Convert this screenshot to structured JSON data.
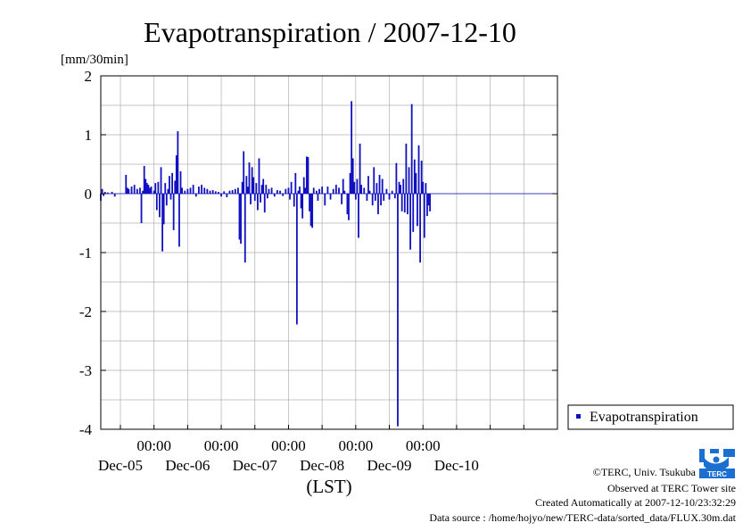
{
  "chart_data": {
    "type": "bar",
    "title": "Evapotranspiration / 2007-12-10",
    "ylabel": "[mm/30min]",
    "xlabel": "(LST)",
    "ylim": [
      -4,
      2
    ],
    "yticks": [
      "2",
      "1",
      "0",
      "-1",
      "-2",
      "-3",
      "-4"
    ],
    "xlim": [
      "2007-12-04 05:00",
      "2007-12-10 24:00"
    ],
    "xtick_times": [
      "00:00",
      "00:00",
      "00:00",
      "00:00",
      "00:00"
    ],
    "xtick_dates": [
      "Dec-05",
      "Dec-06",
      "Dec-07",
      "Dec-08",
      "Dec-09",
      "Dec-10"
    ],
    "grid": true,
    "legend_position": "bottom-right",
    "series": [
      {
        "name": "Evapotranspiration",
        "color": "#1010c0",
        "points": [
          {
            "t": "2007-12-04 05:00",
            "v": -0.12
          },
          {
            "t": "2007-12-04 05:30",
            "v": 0.08
          },
          {
            "t": "2007-12-04 06:00",
            "v": -0.04
          },
          {
            "t": "2007-12-04 06:30",
            "v": 0.03
          },
          {
            "t": "2007-12-04 07:30",
            "v": 0.02
          },
          {
            "t": "2007-12-04 09:00",
            "v": 0.03
          },
          {
            "t": "2007-12-04 10:00",
            "v": -0.05
          },
          {
            "t": "2007-12-04 14:00",
            "v": 0.32
          },
          {
            "t": "2007-12-04 14:30",
            "v": 0.1
          },
          {
            "t": "2007-12-04 15:00",
            "v": 0.08
          },
          {
            "t": "2007-12-04 16:00",
            "v": 0.12
          },
          {
            "t": "2007-12-04 17:00",
            "v": 0.15
          },
          {
            "t": "2007-12-04 18:00",
            "v": 0.08
          },
          {
            "t": "2007-12-04 19:00",
            "v": 0.1
          },
          {
            "t": "2007-12-04 19:30",
            "v": -0.5
          },
          {
            "t": "2007-12-04 20:00",
            "v": 0.05
          },
          {
            "t": "2007-12-04 20:30",
            "v": 0.47
          },
          {
            "t": "2007-12-04 21:00",
            "v": 0.25
          },
          {
            "t": "2007-12-04 21:30",
            "v": 0.18
          },
          {
            "t": "2007-12-04 22:00",
            "v": 0.15
          },
          {
            "t": "2007-12-04 22:30",
            "v": 0.1
          },
          {
            "t": "2007-12-04 23:00",
            "v": 0.12
          },
          {
            "t": "2007-12-05 00:00",
            "v": 0.05
          },
          {
            "t": "2007-12-05 00:30",
            "v": 0.18
          },
          {
            "t": "2007-12-05 01:00",
            "v": -0.28
          },
          {
            "t": "2007-12-05 01:30",
            "v": 0.2
          },
          {
            "t": "2007-12-05 02:00",
            "v": -0.4
          },
          {
            "t": "2007-12-05 02:30",
            "v": 0.45
          },
          {
            "t": "2007-12-05 03:00",
            "v": -0.98
          },
          {
            "t": "2007-12-05 03:30",
            "v": -0.52
          },
          {
            "t": "2007-12-05 04:00",
            "v": 0.18
          },
          {
            "t": "2007-12-05 04:30",
            "v": -0.2
          },
          {
            "t": "2007-12-05 05:00",
            "v": 0.08
          },
          {
            "t": "2007-12-05 05:30",
            "v": 0.3
          },
          {
            "t": "2007-12-05 06:00",
            "v": -0.1
          },
          {
            "t": "2007-12-05 06:30",
            "v": 0.35
          },
          {
            "t": "2007-12-05 07:00",
            "v": -0.62
          },
          {
            "t": "2007-12-05 07:30",
            "v": 0.22
          },
          {
            "t": "2007-12-05 08:00",
            "v": 0.65
          },
          {
            "t": "2007-12-05 08:30",
            "v": 1.06
          },
          {
            "t": "2007-12-05 09:00",
            "v": -0.9
          },
          {
            "t": "2007-12-05 09:30",
            "v": 0.38
          },
          {
            "t": "2007-12-05 10:00",
            "v": 0.1
          },
          {
            "t": "2007-12-05 11:00",
            "v": 0.05
          },
          {
            "t": "2007-12-05 12:00",
            "v": 0.08
          },
          {
            "t": "2007-12-05 13:00",
            "v": 0.1
          },
          {
            "t": "2007-12-05 14:00",
            "v": 0.15
          },
          {
            "t": "2007-12-05 15:00",
            "v": -0.05
          },
          {
            "t": "2007-12-05 16:00",
            "v": 0.12
          },
          {
            "t": "2007-12-05 17:00",
            "v": 0.15
          },
          {
            "t": "2007-12-05 18:00",
            "v": 0.1
          },
          {
            "t": "2007-12-05 19:00",
            "v": 0.08
          },
          {
            "t": "2007-12-05 20:00",
            "v": 0.05
          },
          {
            "t": "2007-12-05 21:00",
            "v": 0.06
          },
          {
            "t": "2007-12-05 22:00",
            "v": 0.04
          },
          {
            "t": "2007-12-05 23:00",
            "v": 0.03
          },
          {
            "t": "2007-12-06 00:00",
            "v": -0.05
          },
          {
            "t": "2007-12-06 01:00",
            "v": 0.04
          },
          {
            "t": "2007-12-06 02:00",
            "v": -0.06
          },
          {
            "t": "2007-12-06 03:00",
            "v": 0.05
          },
          {
            "t": "2007-12-06 04:00",
            "v": 0.06
          },
          {
            "t": "2007-12-06 05:00",
            "v": 0.08
          },
          {
            "t": "2007-12-06 06:00",
            "v": 0.1
          },
          {
            "t": "2007-12-06 06:30",
            "v": -0.78
          },
          {
            "t": "2007-12-06 07:00",
            "v": -0.85
          },
          {
            "t": "2007-12-06 07:30",
            "v": 0.2
          },
          {
            "t": "2007-12-06 08:00",
            "v": 0.72
          },
          {
            "t": "2007-12-06 08:30",
            "v": -1.17
          },
          {
            "t": "2007-12-06 09:00",
            "v": 0.3
          },
          {
            "t": "2007-12-06 09:30",
            "v": 0.12
          },
          {
            "t": "2007-12-06 10:00",
            "v": 0.53
          },
          {
            "t": "2007-12-06 10:30",
            "v": -0.18
          },
          {
            "t": "2007-12-06 11:00",
            "v": 0.45
          },
          {
            "t": "2007-12-06 11:30",
            "v": 0.28
          },
          {
            "t": "2007-12-06 12:00",
            "v": -0.12
          },
          {
            "t": "2007-12-06 12:30",
            "v": 0.18
          },
          {
            "t": "2007-12-06 13:00",
            "v": -0.28
          },
          {
            "t": "2007-12-06 13:30",
            "v": 0.6
          },
          {
            "t": "2007-12-06 14:00",
            "v": -0.15
          },
          {
            "t": "2007-12-06 14:30",
            "v": 0.15
          },
          {
            "t": "2007-12-06 15:00",
            "v": 0.25
          },
          {
            "t": "2007-12-06 15:30",
            "v": -0.32
          },
          {
            "t": "2007-12-06 16:00",
            "v": 0.15
          },
          {
            "t": "2007-12-06 16:30",
            "v": -0.08
          },
          {
            "t": "2007-12-06 17:00",
            "v": 0.08
          },
          {
            "t": "2007-12-06 18:00",
            "v": 0.1
          },
          {
            "t": "2007-12-06 19:00",
            "v": -0.05
          },
          {
            "t": "2007-12-06 20:00",
            "v": 0.06
          },
          {
            "t": "2007-12-06 21:00",
            "v": 0.05
          },
          {
            "t": "2007-12-06 22:00",
            "v": -0.04
          },
          {
            "t": "2007-12-06 23:00",
            "v": 0.08
          },
          {
            "t": "2007-12-07 00:00",
            "v": 0.1
          },
          {
            "t": "2007-12-07 00:30",
            "v": -0.1
          },
          {
            "t": "2007-12-07 01:00",
            "v": 0.2
          },
          {
            "t": "2007-12-07 02:00",
            "v": -0.22
          },
          {
            "t": "2007-12-07 02:30",
            "v": 0.35
          },
          {
            "t": "2007-12-07 03:00",
            "v": -2.22
          },
          {
            "t": "2007-12-07 03:30",
            "v": 0.05
          },
          {
            "t": "2007-12-07 04:00",
            "v": 0.12
          },
          {
            "t": "2007-12-07 04:30",
            "v": -0.25
          },
          {
            "t": "2007-12-07 05:00",
            "v": -0.42
          },
          {
            "t": "2007-12-07 05:30",
            "v": 0.28
          },
          {
            "t": "2007-12-07 06:00",
            "v": 0.1
          },
          {
            "t": "2007-12-07 06:30",
            "v": 0.63
          },
          {
            "t": "2007-12-07 07:00",
            "v": 0.62
          },
          {
            "t": "2007-12-07 07:30",
            "v": -0.3
          },
          {
            "t": "2007-12-07 08:00",
            "v": -0.55
          },
          {
            "t": "2007-12-07 08:30",
            "v": -0.58
          },
          {
            "t": "2007-12-07 09:00",
            "v": 0.1
          },
          {
            "t": "2007-12-07 10:00",
            "v": 0.05
          },
          {
            "t": "2007-12-07 10:30",
            "v": -0.12
          },
          {
            "t": "2007-12-07 11:00",
            "v": 0.08
          },
          {
            "t": "2007-12-07 12:00",
            "v": 0.12
          },
          {
            "t": "2007-12-07 13:00",
            "v": -0.2
          },
          {
            "t": "2007-12-07 14:00",
            "v": 0.12
          },
          {
            "t": "2007-12-07 15:00",
            "v": -0.1
          },
          {
            "t": "2007-12-07 16:00",
            "v": 0.08
          },
          {
            "t": "2007-12-07 17:00",
            "v": 0.15
          },
          {
            "t": "2007-12-07 18:00",
            "v": 0.1
          },
          {
            "t": "2007-12-07 19:00",
            "v": -0.18
          },
          {
            "t": "2007-12-07 19:30",
            "v": 0.25
          },
          {
            "t": "2007-12-07 20:00",
            "v": 0.05
          },
          {
            "t": "2007-12-07 21:00",
            "v": -0.35
          },
          {
            "t": "2007-12-07 21:30",
            "v": -0.45
          },
          {
            "t": "2007-12-07 22:00",
            "v": 0.35
          },
          {
            "t": "2007-12-07 22:30",
            "v": 1.57
          },
          {
            "t": "2007-12-07 23:00",
            "v": 0.6
          },
          {
            "t": "2007-12-07 23:30",
            "v": 0.2
          },
          {
            "t": "2007-12-08 00:00",
            "v": -0.1
          },
          {
            "t": "2007-12-08 00:30",
            "v": 0.25
          },
          {
            "t": "2007-12-08 01:00",
            "v": -0.75
          },
          {
            "t": "2007-12-08 01:30",
            "v": 0.85
          },
          {
            "t": "2007-12-08 02:00",
            "v": 0.15
          },
          {
            "t": "2007-12-08 03:00",
            "v": 0.1
          },
          {
            "t": "2007-12-08 04:00",
            "v": -0.12
          },
          {
            "t": "2007-12-08 04:30",
            "v": 0.3
          },
          {
            "t": "2007-12-08 05:00",
            "v": 0.05
          },
          {
            "t": "2007-12-08 06:00",
            "v": -0.2
          },
          {
            "t": "2007-12-08 06:30",
            "v": 0.45
          },
          {
            "t": "2007-12-08 07:00",
            "v": -0.12
          },
          {
            "t": "2007-12-08 07:30",
            "v": 0.18
          },
          {
            "t": "2007-12-08 08:00",
            "v": -0.35
          },
          {
            "t": "2007-12-08 08:30",
            "v": 0.32
          },
          {
            "t": "2007-12-08 09:00",
            "v": -0.2
          },
          {
            "t": "2007-12-08 09:30",
            "v": 0.25
          },
          {
            "t": "2007-12-08 10:00",
            "v": -0.12
          },
          {
            "t": "2007-12-08 11:00",
            "v": 0.08
          },
          {
            "t": "2007-12-08 12:00",
            "v": -0.1
          },
          {
            "t": "2007-12-08 13:00",
            "v": 0.05
          },
          {
            "t": "2007-12-08 14:00",
            "v": -0.08
          },
          {
            "t": "2007-12-08 14:30",
            "v": 0.52
          },
          {
            "t": "2007-12-08 15:00",
            "v": -3.95
          },
          {
            "t": "2007-12-08 15:30",
            "v": 0.2
          },
          {
            "t": "2007-12-08 16:00",
            "v": 0.15
          },
          {
            "t": "2007-12-08 16:30",
            "v": -0.3
          },
          {
            "t": "2007-12-08 17:00",
            "v": 0.25
          },
          {
            "t": "2007-12-08 17:30",
            "v": -0.32
          },
          {
            "t": "2007-12-08 18:00",
            "v": 0.85
          },
          {
            "t": "2007-12-08 18:30",
            "v": -0.35
          },
          {
            "t": "2007-12-08 19:00",
            "v": 0.45
          },
          {
            "t": "2007-12-08 19:30",
            "v": -0.95
          },
          {
            "t": "2007-12-08 20:00",
            "v": 1.52
          },
          {
            "t": "2007-12-08 20:30",
            "v": -0.65
          },
          {
            "t": "2007-12-08 21:00",
            "v": 0.58
          },
          {
            "t": "2007-12-08 21:30",
            "v": 0.35
          },
          {
            "t": "2007-12-08 22:00",
            "v": -0.55
          },
          {
            "t": "2007-12-08 22:30",
            "v": 0.82
          },
          {
            "t": "2007-12-08 23:00",
            "v": -1.17
          },
          {
            "t": "2007-12-08 23:30",
            "v": 0.56
          },
          {
            "t": "2007-12-09 00:00",
            "v": 0.2
          },
          {
            "t": "2007-12-09 00:30",
            "v": -0.75
          },
          {
            "t": "2007-12-09 01:00",
            "v": 0.18
          },
          {
            "t": "2007-12-09 01:30",
            "v": -0.38
          },
          {
            "t": "2007-12-09 02:00",
            "v": -0.2
          },
          {
            "t": "2007-12-09 02:30",
            "v": -0.3
          }
        ]
      }
    ]
  },
  "credits": {
    "copyright": "©TERC, Univ. Tsukuba",
    "observed": "Observed at TERC Tower site",
    "created": "Created Automatically at 2007-12-10/23:32:29",
    "source": "Data source : /home/hojyo/new/TERC-data/sorted_data/FLUX.30m.dat"
  },
  "logo": {
    "text": "TERC",
    "color": "#1a6fd0"
  }
}
